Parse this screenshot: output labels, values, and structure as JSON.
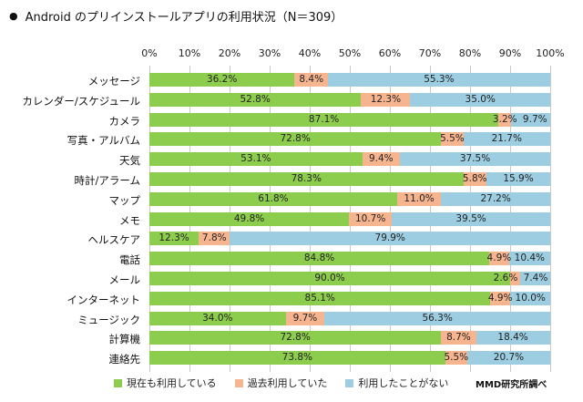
{
  "header": {
    "bullet": "●",
    "title": "Android のプリインストールアプリの利用状況（N＝309）"
  },
  "source": "MMD研究所調べ",
  "colors": {
    "current": "#8dcd4e",
    "past": "#f6b48f",
    "never": "#9ccde0"
  },
  "chart_data": {
    "type": "bar",
    "orientation": "horizontal",
    "stacked": true,
    "title": "Android のプリインストールアプリの利用状況（N＝309）",
    "xlim": [
      0,
      100
    ],
    "x_ticks": [
      "0%",
      "10%",
      "20%",
      "30%",
      "40%",
      "50%",
      "60%",
      "70%",
      "80%",
      "90%",
      "100%"
    ],
    "grid": true,
    "legend_position": "bottom",
    "categories": [
      "メッセージ",
      "カレンダー/スケジュール",
      "カメラ",
      "写真・アルバム",
      "天気",
      "時計/アラーム",
      "マップ",
      "メモ",
      "ヘルスケア",
      "電話",
      "メール",
      "インターネット",
      "ミュージック",
      "計算機",
      "連絡先"
    ],
    "series": [
      {
        "name": "現在も利用している",
        "values": [
          36.2,
          52.8,
          87.1,
          72.8,
          53.1,
          78.3,
          61.8,
          49.8,
          12.3,
          84.8,
          90.0,
          85.1,
          34.0,
          72.8,
          73.8
        ]
      },
      {
        "name": "過去利用していた",
        "values": [
          8.4,
          12.3,
          3.2,
          5.5,
          9.4,
          5.8,
          11.0,
          10.7,
          7.8,
          4.9,
          2.6,
          4.9,
          9.7,
          8.7,
          5.5
        ]
      },
      {
        "name": "利用したことがない",
        "values": [
          55.3,
          35.0,
          9.7,
          21.7,
          37.5,
          15.9,
          27.2,
          39.5,
          79.9,
          10.4,
          7.4,
          10.0,
          56.3,
          18.4,
          20.7
        ]
      }
    ]
  }
}
